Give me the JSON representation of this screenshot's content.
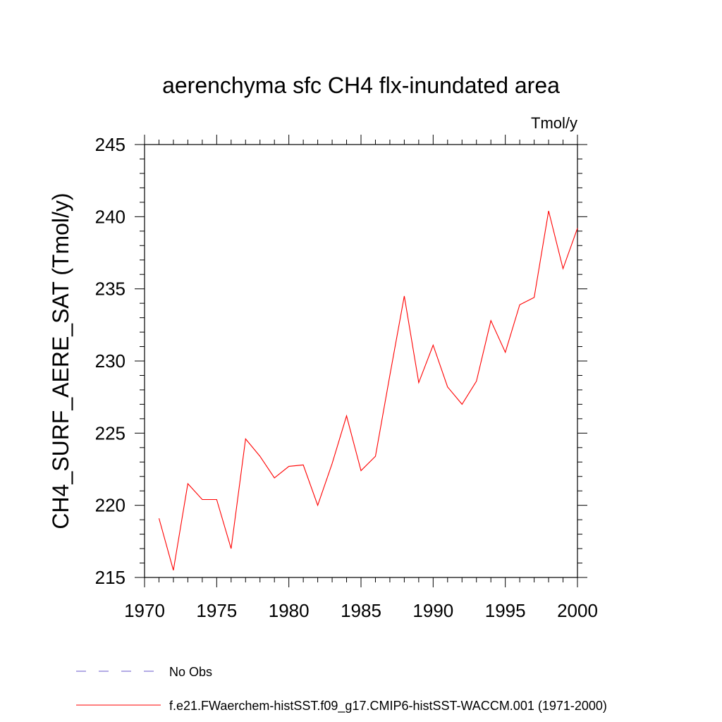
{
  "chart_data": {
    "type": "line",
    "title": "aerenchyma sfc CH4 flx-inundated area",
    "units": "Tmol/y",
    "ylabel": "CH4_SURF_AERE_SAT  (Tmol/y)",
    "xlabel": "",
    "xlim": [
      1970,
      2000
    ],
    "ylim": [
      215,
      245
    ],
    "xticks": [
      1970,
      1975,
      1980,
      1985,
      1990,
      1995,
      2000
    ],
    "yticks": [
      215,
      220,
      225,
      230,
      235,
      240,
      245
    ],
    "grid": false,
    "series": [
      {
        "name": "f.e21.FWaerchem-histSST.f09_g17.CMIP6-histSST-WACCM.001 (1971-2000)",
        "color": "#ff0000",
        "style": "solid",
        "x": [
          1971,
          1972,
          1973,
          1974,
          1975,
          1976,
          1977,
          1978,
          1979,
          1980,
          1981,
          1982,
          1983,
          1984,
          1985,
          1986,
          1987,
          1988,
          1989,
          1990,
          1991,
          1992,
          1993,
          1994,
          1995,
          1996,
          1997,
          1998,
          1999,
          2000
        ],
        "y": [
          219.1,
          215.5,
          221.5,
          220.4,
          220.4,
          217.0,
          224.6,
          223.4,
          221.9,
          222.7,
          222.8,
          220.0,
          222.9,
          226.2,
          222.4,
          223.4,
          229.0,
          234.5,
          228.5,
          231.1,
          228.2,
          227.0,
          228.6,
          232.8,
          230.6,
          233.9,
          234.4,
          240.4,
          236.4,
          239.2
        ]
      }
    ],
    "legend": {
      "placement": "bottom",
      "entries": [
        {
          "label": "No Obs",
          "color": "#6a5acd",
          "style": "dashed"
        },
        {
          "label": "f.e21.FWaerchem-histSST.f09_g17.CMIP6-histSST-WACCM.001 (1971-2000)",
          "color": "#ff0000",
          "style": "solid"
        }
      ]
    }
  }
}
